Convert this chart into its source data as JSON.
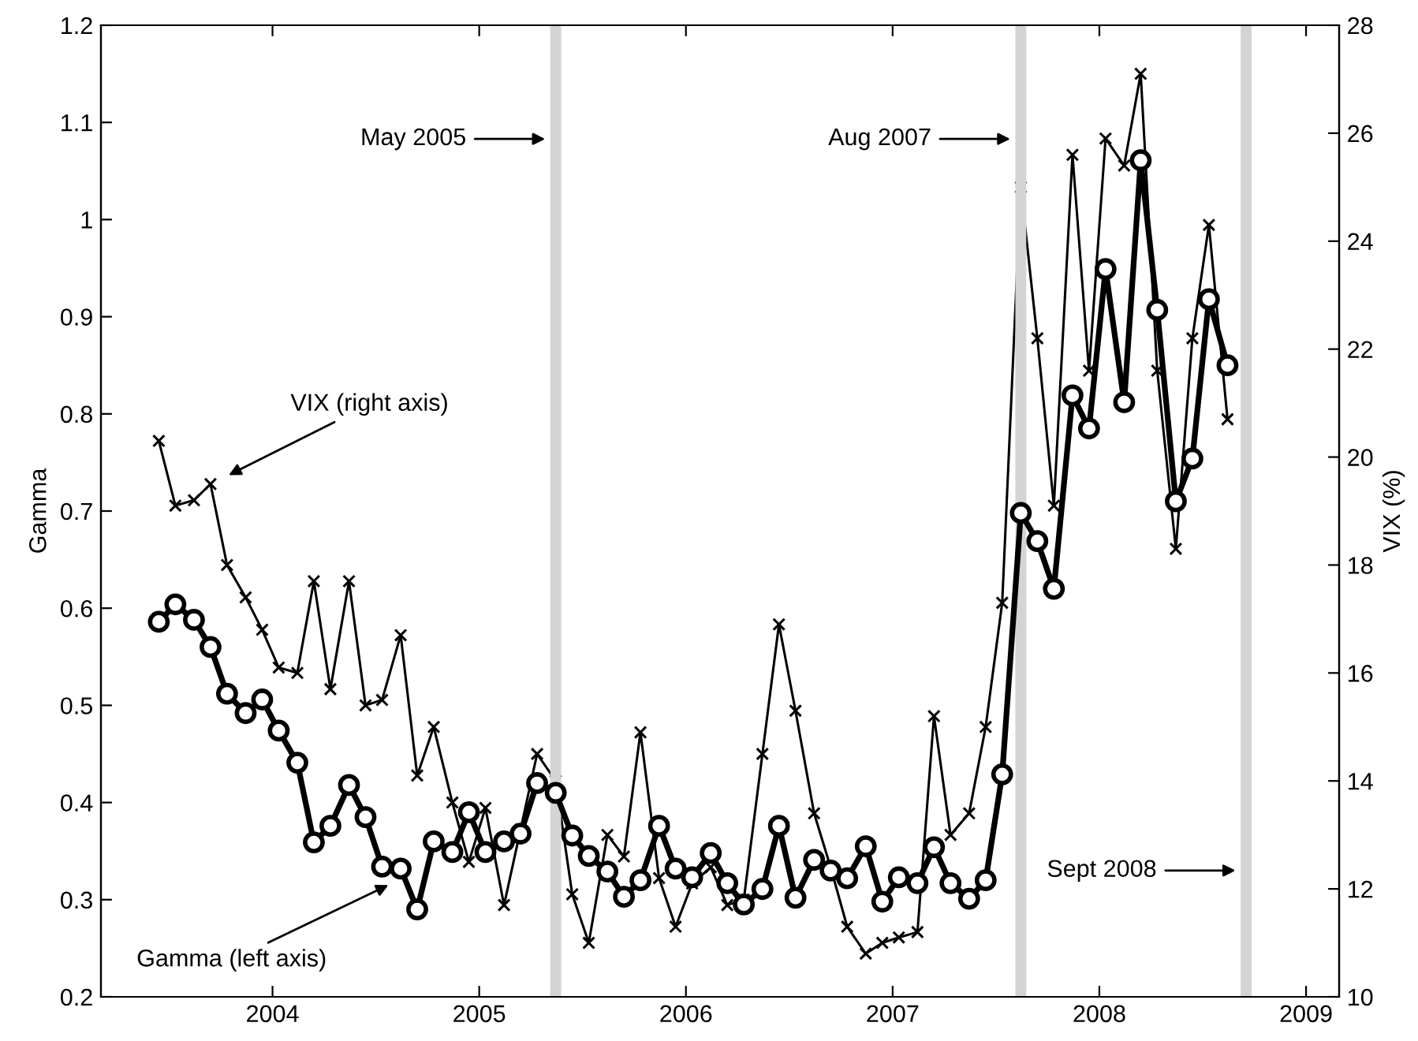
{
  "chart_data": {
    "type": "line",
    "ylabel": "Gamma",
    "y2label": "VIX (%)",
    "xlim": [
      2003.17,
      2009.16
    ],
    "xticks": [
      2004,
      2005,
      2006,
      2007,
      2008,
      2009
    ],
    "ylim": [
      0.2,
      1.2
    ],
    "yticks": [
      0.2,
      0.3,
      0.4,
      0.5,
      0.6,
      0.7,
      0.8,
      0.9,
      1,
      1.1,
      1.2
    ],
    "y2lim": [
      10,
      28
    ],
    "y2ticks": [
      10,
      12,
      14,
      16,
      18,
      20,
      22,
      24,
      26,
      28
    ],
    "grid": false,
    "legend": false,
    "line_style": "solid",
    "series": [
      {
        "color": "#000000",
        "marker": "circle",
        "axis": "y",
        "x": [
          2003.45,
          2003.53,
          2003.62,
          2003.7,
          2003.78,
          2003.87,
          2003.95,
          2004.03,
          2004.12,
          2004.2,
          2004.28,
          2004.37,
          2004.45,
          2004.53,
          2004.62,
          2004.7,
          2004.78,
          2004.87,
          2004.95,
          2005.03,
          2005.12,
          2005.2,
          2005.28,
          2005.37,
          2005.45,
          2005.53,
          2005.62,
          2005.7,
          2005.78,
          2005.87,
          2005.95,
          2006.03,
          2006.12,
          2006.2,
          2006.28,
          2006.37,
          2006.45,
          2006.53,
          2006.62,
          2006.7,
          2006.78,
          2006.87,
          2006.95,
          2007.03,
          2007.12,
          2007.2,
          2007.28,
          2007.37,
          2007.45,
          2007.53,
          2007.62,
          2007.7,
          2007.78,
          2007.87,
          2007.95,
          2008.03,
          2008.12,
          2008.2,
          2008.28,
          2008.37,
          2008.45,
          2008.53,
          2008.62
        ],
        "values": [
          0.586,
          0.604,
          0.588,
          0.56,
          0.512,
          0.492,
          0.506,
          0.474,
          0.441,
          0.359,
          0.376,
          0.418,
          0.385,
          0.334,
          0.332,
          0.29,
          0.36,
          0.349,
          0.39,
          0.349,
          0.36,
          0.368,
          0.42,
          0.41,
          0.366,
          0.345,
          0.329,
          0.303,
          0.32,
          0.376,
          0.332,
          0.323,
          0.348,
          0.317,
          0.295,
          0.311,
          0.376,
          0.302,
          0.341,
          0.33,
          0.322,
          0.355,
          0.298,
          0.323,
          0.317,
          0.354,
          0.317,
          0.301,
          0.32,
          0.429,
          0.698,
          0.669,
          0.62,
          0.819,
          0.785,
          0.949,
          0.812,
          1.061,
          0.907,
          0.71,
          0.754,
          0.918,
          0.85
        ]
      },
      {
        "color": "#000000",
        "marker": "cross",
        "axis": "y2",
        "x": [
          2003.45,
          2003.53,
          2003.62,
          2003.7,
          2003.78,
          2003.87,
          2003.95,
          2004.03,
          2004.12,
          2004.2,
          2004.28,
          2004.37,
          2004.45,
          2004.53,
          2004.62,
          2004.7,
          2004.78,
          2004.87,
          2004.95,
          2005.03,
          2005.12,
          2005.2,
          2005.28,
          2005.37,
          2005.45,
          2005.53,
          2005.62,
          2005.7,
          2005.78,
          2005.87,
          2005.95,
          2006.03,
          2006.12,
          2006.2,
          2006.28,
          2006.37,
          2006.45,
          2006.53,
          2006.62,
          2006.7,
          2006.78,
          2006.87,
          2006.95,
          2007.03,
          2007.12,
          2007.2,
          2007.28,
          2007.37,
          2007.45,
          2007.53,
          2007.62,
          2007.7,
          2007.78,
          2007.87,
          2007.95,
          2008.03,
          2008.12,
          2008.2,
          2008.28,
          2008.37,
          2008.45,
          2008.53,
          2008.62
        ],
        "values": [
          20.3,
          19.1,
          19.2,
          19.5,
          18.0,
          17.4,
          16.8,
          16.1,
          16.0,
          17.7,
          15.7,
          17.7,
          15.4,
          15.5,
          16.7,
          14.1,
          15.0,
          13.6,
          12.5,
          13.5,
          11.7,
          13.1,
          14.5,
          14.0,
          11.9,
          11.0,
          13.0,
          12.6,
          14.9,
          12.2,
          11.3,
          12.1,
          12.4,
          11.7,
          11.8,
          14.5,
          16.9,
          15.3,
          13.4,
          12.4,
          11.3,
          10.8,
          11.0,
          11.1,
          11.2,
          15.2,
          13.0,
          13.4,
          15.0,
          17.3,
          25.0,
          22.2,
          19.1,
          25.6,
          21.6,
          25.9,
          25.4,
          27.1,
          21.6,
          18.3,
          22.2,
          24.3,
          20.7
        ]
      }
    ],
    "ref_lines": [
      {
        "axis": "x",
        "value": 2005.37,
        "label": "May 2005",
        "color": "#d4d4d4"
      },
      {
        "axis": "x",
        "value": 2007.62,
        "label": "Aug 2007",
        "color": "#d4d4d4"
      },
      {
        "axis": "x",
        "value": 2008.71,
        "label": "Sept 2008",
        "color": "#d4d4d4"
      }
    ],
    "annotations": [
      "VIX (right axis)",
      {
        "text": "Gamma (left axis)",
        "x": 2004.58,
        "y": 0.317
      }
    ]
  }
}
